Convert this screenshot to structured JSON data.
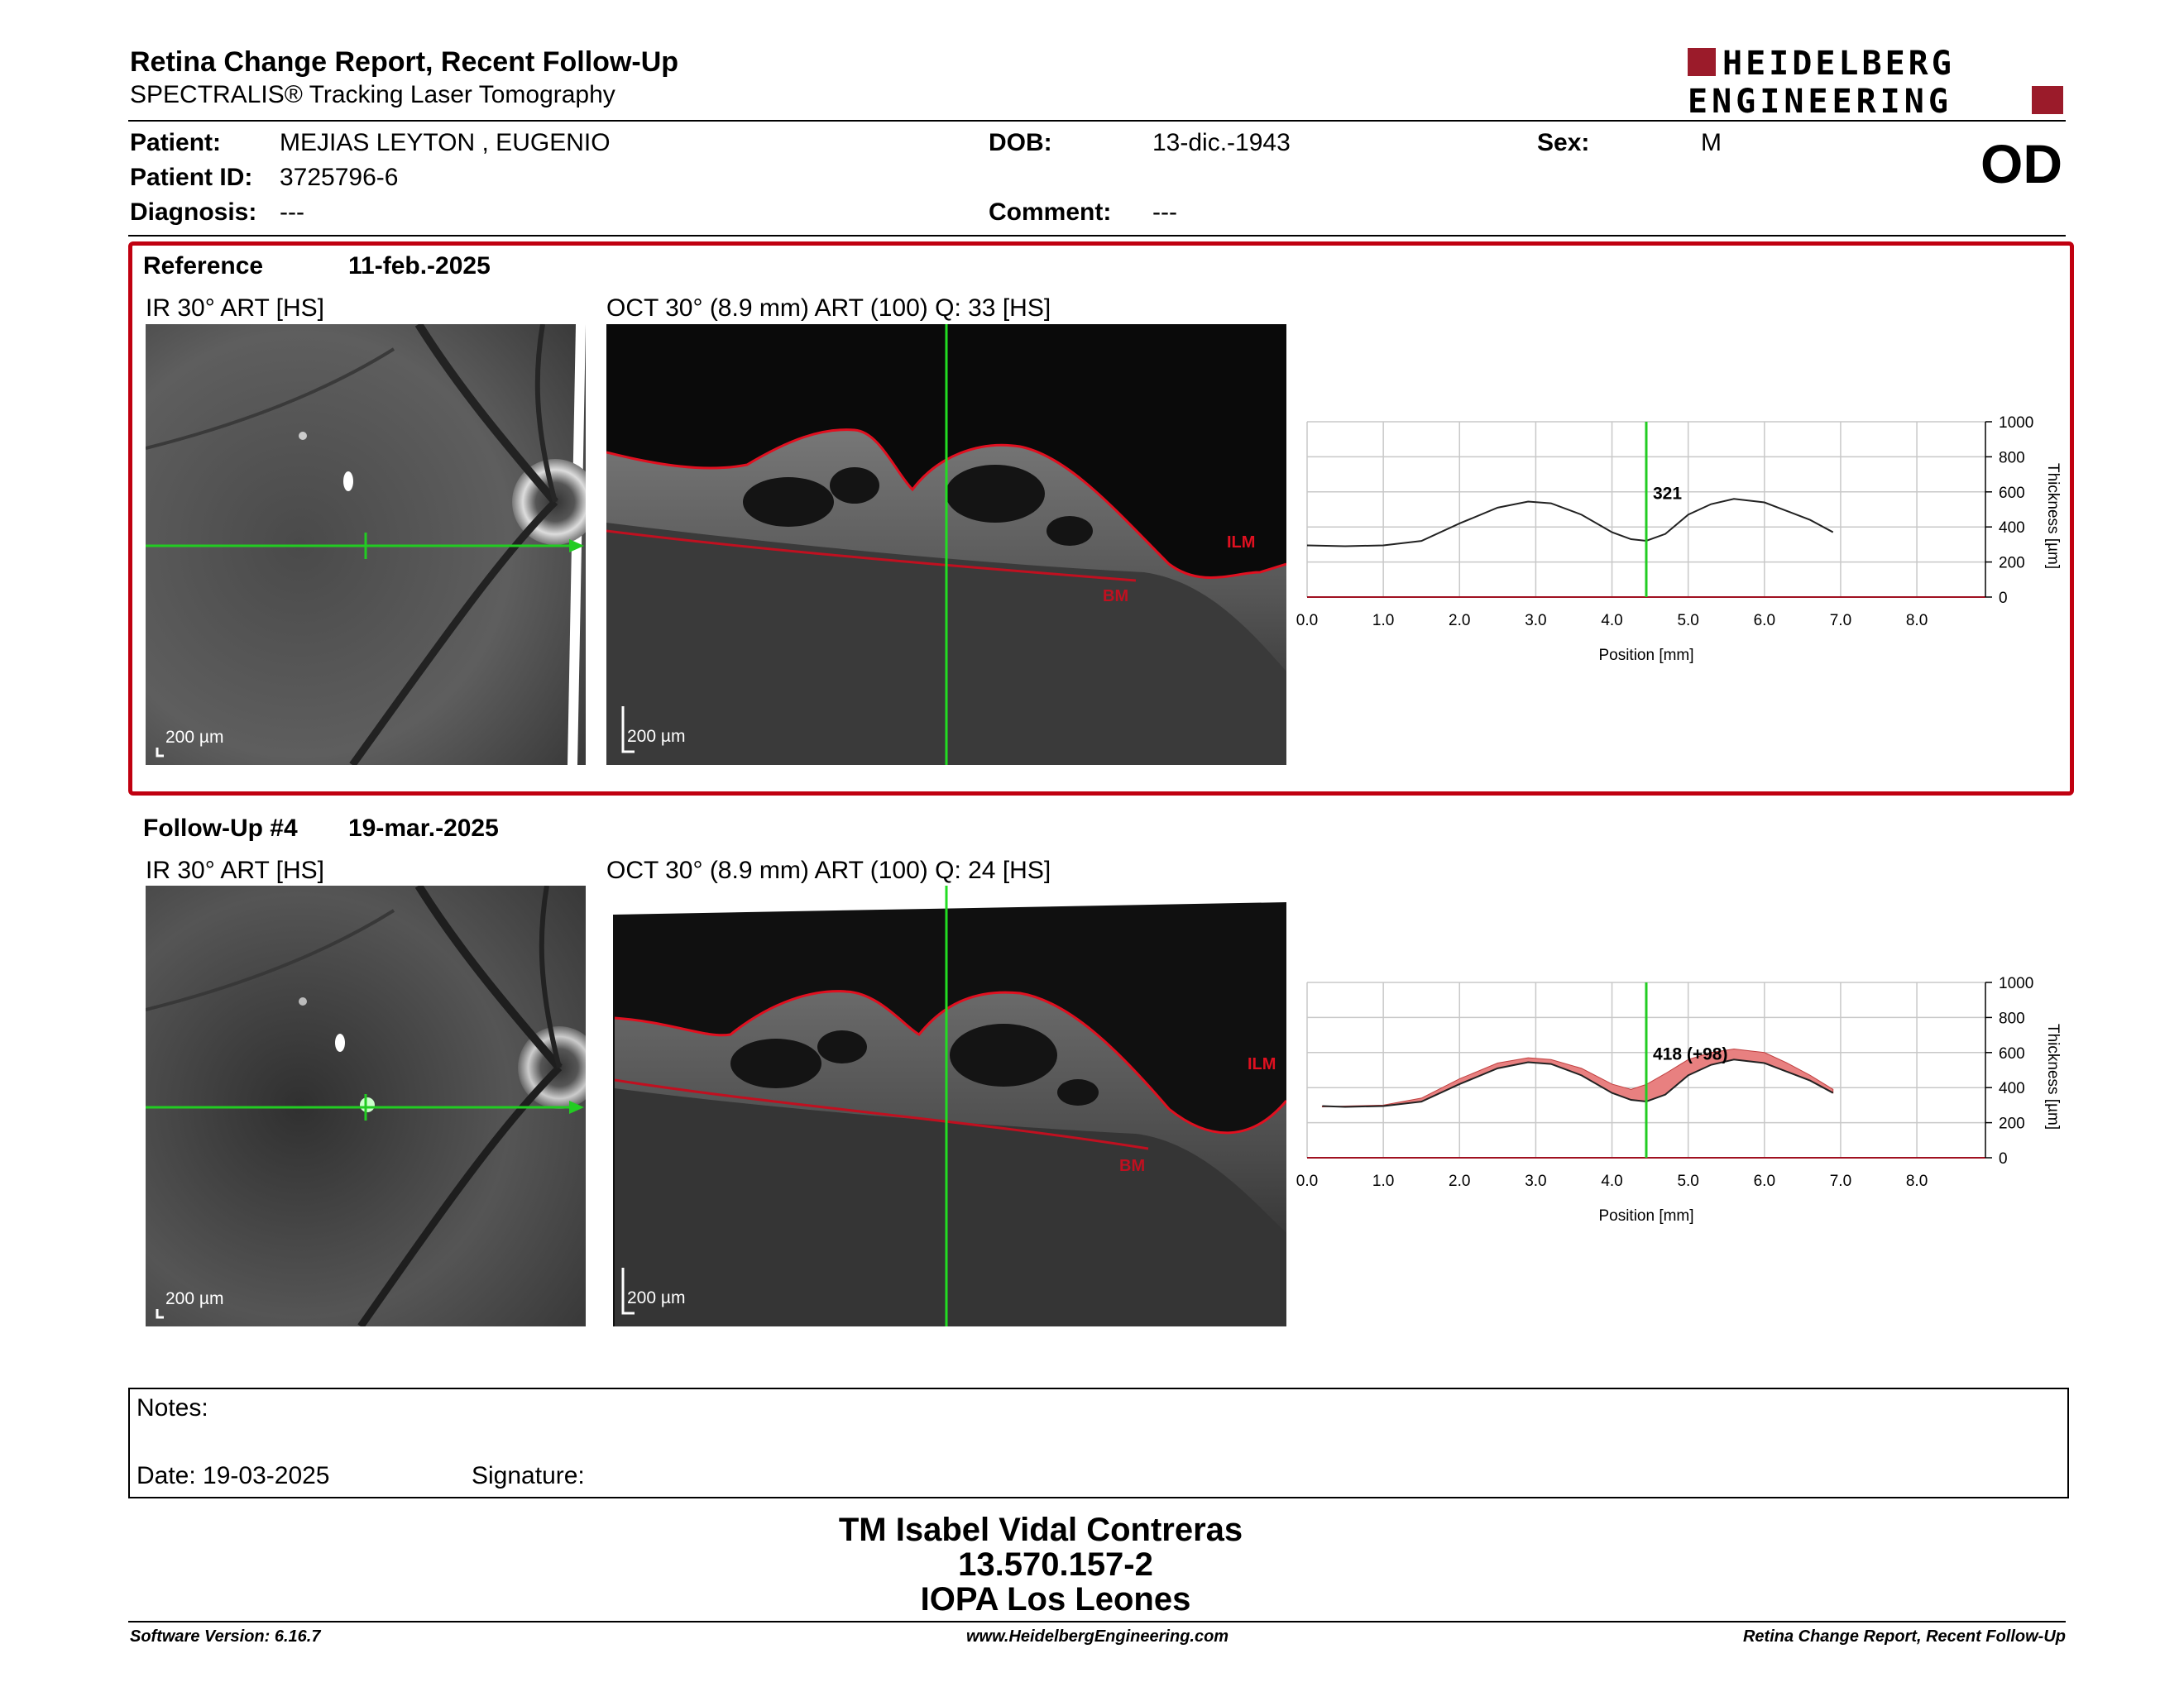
{
  "header": {
    "title": "Retina Change Report, Recent Follow-Up",
    "subtitle": "SPECTRALIS® Tracking Laser Tomography",
    "logo_line1": "HEIDELBERG",
    "logo_line2": "ENGINEERING"
  },
  "patient": {
    "patient_label": "Patient:",
    "patient_value": "MEJIAS LEYTON , EUGENIO",
    "id_label": "Patient ID:",
    "id_value": "3725796-6",
    "diagnosis_label": "Diagnosis:",
    "diagnosis_value": "---",
    "dob_label": "DOB:",
    "dob_value": "13-dic.-1943",
    "comment_label": "Comment:",
    "comment_value": "---",
    "sex_label": "Sex:",
    "sex_value": "M",
    "eye": "OD"
  },
  "reference": {
    "label": "Reference",
    "date": "11-feb.-2025",
    "ir_caption": "IR 30° ART [HS]",
    "oct_caption": "OCT 30° (8.9 mm) ART (100) Q: 33 [HS]",
    "scale": "200 µm",
    "ilm": "ILM",
    "bm": "BM"
  },
  "followup": {
    "label": "Follow-Up #4",
    "date": "19-mar.-2025",
    "ir_caption": "IR 30° ART [HS]",
    "oct_caption": "OCT 30° (8.9 mm) ART (100) Q: 24 [HS]",
    "scale": "200 µm",
    "ilm": "ILM",
    "bm": "BM"
  },
  "chart_data": [
    {
      "type": "line",
      "xlabel": "Position [mm]",
      "ylabel": "Thickness [µm]",
      "xlim": [
        0,
        8.9
      ],
      "ylim": [
        0,
        1000
      ],
      "xticks": [
        "0.0",
        "1.0",
        "2.0",
        "3.0",
        "4.0",
        "5.0",
        "6.0",
        "7.0",
        "8.0"
      ],
      "yticks": [
        "0",
        "200",
        "400",
        "600",
        "800",
        "1000"
      ],
      "cursor_x": 4.45,
      "cursor_label": "321",
      "series": [
        {
          "x": [
            0,
            0.5,
            1,
            1.5,
            2,
            2.5,
            2.9,
            3.2,
            3.6,
            4.0,
            4.25,
            4.45,
            4.7,
            5.0,
            5.3,
            5.6,
            6.0,
            6.3,
            6.6,
            6.9
          ],
          "y": [
            295,
            290,
            295,
            320,
            420,
            510,
            545,
            535,
            470,
            370,
            330,
            321,
            360,
            470,
            530,
            560,
            540,
            490,
            440,
            370
          ]
        }
      ]
    },
    {
      "type": "area",
      "xlabel": "Position [mm]",
      "ylabel": "Thickness [µm]",
      "xlim": [
        0,
        8.9
      ],
      "ylim": [
        0,
        1000
      ],
      "xticks": [
        "0.0",
        "1.0",
        "2.0",
        "3.0",
        "4.0",
        "5.0",
        "6.0",
        "7.0",
        "8.0"
      ],
      "yticks": [
        "0",
        "200",
        "400",
        "600",
        "800",
        "1000"
      ],
      "cursor_x": 4.45,
      "cursor_label": "418 (+98)",
      "series": [
        {
          "x": [
            0.2,
            0.5,
            1,
            1.5,
            2,
            2.5,
            2.9,
            3.2,
            3.6,
            4.0,
            4.25,
            4.45,
            4.7,
            5.0,
            5.3,
            5.6,
            6.0,
            6.3,
            6.6,
            6.9
          ],
          "y": [
            295,
            290,
            295,
            320,
            420,
            510,
            545,
            535,
            470,
            370,
            330,
            321,
            360,
            470,
            530,
            560,
            540,
            490,
            440,
            370
          ]
        },
        {
          "x": [
            0.2,
            0.5,
            1,
            1.5,
            2,
            2.5,
            2.9,
            3.2,
            3.6,
            4.0,
            4.25,
            4.45,
            4.7,
            5.0,
            5.3,
            5.6,
            6.0,
            6.3,
            6.6,
            6.9
          ],
          "y": [
            290,
            295,
            300,
            340,
            450,
            540,
            570,
            560,
            510,
            420,
            390,
            418,
            480,
            560,
            600,
            620,
            600,
            540,
            470,
            390
          ]
        }
      ],
      "fill_color": "#e88080"
    }
  ],
  "notes": {
    "notes_label": "Notes:",
    "date_label": "Date: 19-03-2025",
    "signature_label": "Signature:"
  },
  "signature_block": {
    "line1": "TM Isabel Vidal Contreras",
    "line2": "13.570.157-2",
    "line3": "IOPA Los Leones"
  },
  "footer": {
    "software": "Software Version: 6.16.7",
    "website": "www.HeidelbergEngineering.com",
    "report": "Retina Change Report, Recent Follow-Up"
  }
}
